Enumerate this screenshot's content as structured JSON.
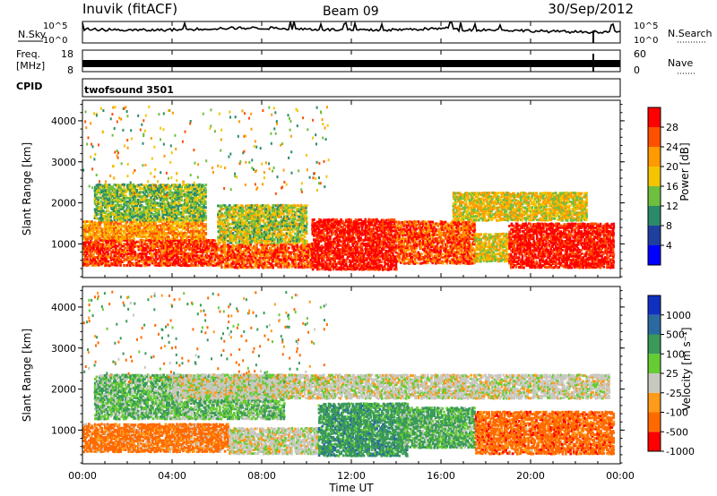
{
  "header": {
    "station": "Inuvik (fitACF)",
    "beam": "Beam 09",
    "date": "30/Sep/2012"
  },
  "noise_panel": {
    "left_label": "N.Sky",
    "right_label": "N.Search",
    "tick_top": "10^5",
    "tick_bottom": "10^0"
  },
  "freq_panel": {
    "left_label_1": "Freq.",
    "left_label_2": "[MHz]",
    "left_tick_top": "18",
    "left_tick_bottom": "8",
    "right_label": "Nave",
    "right_tick_top": "60",
    "right_tick_bottom": "0"
  },
  "cpid_panel": {
    "label": "CPID",
    "value": "twofsound 3501"
  },
  "x_axis": {
    "label": "Time UT",
    "ticks": [
      "00:00",
      "04:00",
      "08:00",
      "12:00",
      "16:00",
      "20:00",
      "00:00"
    ],
    "range_hours": [
      0,
      24
    ]
  },
  "power_panel": {
    "ylabel": "Slant Range [km]",
    "yticks": [
      "1000",
      "2000",
      "3000",
      "4000"
    ],
    "yrange_km": [
      180,
      4500
    ],
    "colorbar_label": "Power [dB]",
    "colorbar_ticks": [
      "4",
      "8",
      "12",
      "16",
      "20",
      "24",
      "28"
    ]
  },
  "velocity_panel": {
    "ylabel": "Slant Range [km]",
    "yticks": [
      "1000",
      "2000",
      "3000",
      "4000"
    ],
    "yrange_km": [
      180,
      4500
    ],
    "colorbar_label": "Velocity [m s⁻¹]",
    "colorbar_ticks": [
      "1000",
      "500",
      "100",
      "25",
      "-25",
      "-100",
      "-500",
      "-1000"
    ]
  },
  "chart_data": [
    {
      "type": "heatmap",
      "name": "Power",
      "x_unit": "hours UT",
      "y_unit": "km",
      "value_unit": "dB",
      "color_scale": [
        {
          "max": 4,
          "color": "#0000ff"
        },
        {
          "max": 8,
          "color": "#1f3f9f"
        },
        {
          "max": 12,
          "color": "#2a8a6a"
        },
        {
          "max": 16,
          "color": "#6fbf3f"
        },
        {
          "max": 20,
          "color": "#f5c400"
        },
        {
          "max": 24,
          "color": "#ff9a00"
        },
        {
          "max": 28,
          "color": "#ff5000"
        },
        {
          "max": 32,
          "color": "#ff0000"
        }
      ],
      "regions": [
        {
          "t": [
            0.0,
            6.0
          ],
          "r": [
            500,
            1150
          ],
          "v": 28
        },
        {
          "t": [
            0.0,
            5.5
          ],
          "r": [
            1150,
            1600
          ],
          "v": 22
        },
        {
          "t": [
            0.5,
            5.5
          ],
          "r": [
            1600,
            2500
          ],
          "v": 14
        },
        {
          "t": [
            6.0,
            10.3
          ],
          "r": [
            450,
            1050
          ],
          "v": 26
        },
        {
          "t": [
            6.0,
            10.0
          ],
          "r": [
            1050,
            2000
          ],
          "v": 16
        },
        {
          "t": [
            10.2,
            14.0
          ],
          "r": [
            400,
            1650
          ],
          "v": 30
        },
        {
          "t": [
            14.0,
            17.5
          ],
          "r": [
            550,
            1600
          ],
          "v": 26
        },
        {
          "t": [
            17.5,
            19.0
          ],
          "r": [
            600,
            1300
          ],
          "v": 18
        },
        {
          "t": [
            19.0,
            23.7
          ],
          "r": [
            450,
            1550
          ],
          "v": 30
        },
        {
          "t": [
            16.5,
            22.5
          ],
          "r": [
            1600,
            2300
          ],
          "v": 18
        }
      ]
    },
    {
      "type": "heatmap",
      "name": "Velocity",
      "x_unit": "hours UT",
      "y_unit": "km",
      "value_unit": "m/s",
      "color_scale": [
        {
          "max": -500,
          "color": "#ff0000"
        },
        {
          "max": -100,
          "color": "#ff6a00"
        },
        {
          "max": -25,
          "color": "#ff9a1a"
        },
        {
          "max": 25,
          "color": "#c8c8c0"
        },
        {
          "max": 100,
          "color": "#66cc33"
        },
        {
          "max": 500,
          "color": "#3a9a5a"
        },
        {
          "max": 1000,
          "color": "#2a6aa0"
        },
        {
          "max": 5000,
          "color": "#1030c0"
        }
      ],
      "regions": [
        {
          "t": [
            0.0,
            6.5
          ],
          "r": [
            500,
            1200
          ],
          "v": -200
        },
        {
          "t": [
            0.5,
            9.0
          ],
          "r": [
            1300,
            2400
          ],
          "v": 80
        },
        {
          "t": [
            6.5,
            10.5
          ],
          "r": [
            450,
            1100
          ],
          "v": 0
        },
        {
          "t": [
            10.5,
            14.5
          ],
          "r": [
            400,
            1700
          ],
          "v": 300
        },
        {
          "t": [
            14.0,
            17.5
          ],
          "r": [
            600,
            1600
          ],
          "v": 120
        },
        {
          "t": [
            17.5,
            23.7
          ],
          "r": [
            450,
            1500
          ],
          "v": -300
        },
        {
          "t": [
            4.0,
            23.5
          ],
          "r": [
            1800,
            2400
          ],
          "v": 0
        }
      ]
    }
  ]
}
